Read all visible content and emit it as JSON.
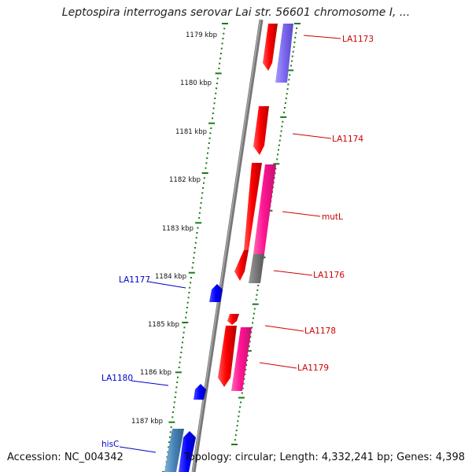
{
  "title": "Leptospira interrogans serovar Lai str. 56601 chromosome I, ...",
  "footer": {
    "accession": "Accession: NC_004342",
    "summary": "Topology: circular; Length: 4,332,241 bp; Genes: 4,398"
  },
  "ticks": [
    "1179 kbp",
    "1180 kbp",
    "1181 kbp",
    "1182 kbp",
    "1183 kbp",
    "1184 kbp",
    "1185 kbp",
    "1186 kbp",
    "1187 kbp"
  ],
  "genes_forward": [
    {
      "label": "LA1173",
      "color": "#cc0000"
    },
    {
      "label": "LA1174",
      "color": "#cc0000"
    },
    {
      "label": "mutL",
      "color": "#cc0000"
    },
    {
      "label": "LA1176",
      "color": "#cc0000"
    },
    {
      "label": "LA1178",
      "color": "#cc0000"
    },
    {
      "label": "LA1179",
      "color": "#cc0000"
    }
  ],
  "genes_reverse": [
    {
      "label": "LA1177",
      "color": "#0000cc"
    },
    {
      "label": "LA1180",
      "color": "#0000cc"
    },
    {
      "label": "hisC",
      "color": "#0000cc"
    }
  ],
  "colors": {
    "forward_gene": "#ff0000",
    "reverse_gene": "#0000ff",
    "cds_magenta": "#ff1493",
    "cds_purple": "#7b68ee",
    "cds_gray": "#777777",
    "cds_steel": "#4682b4",
    "backbone": "#888888",
    "tick_green": "#1a7a1a"
  }
}
